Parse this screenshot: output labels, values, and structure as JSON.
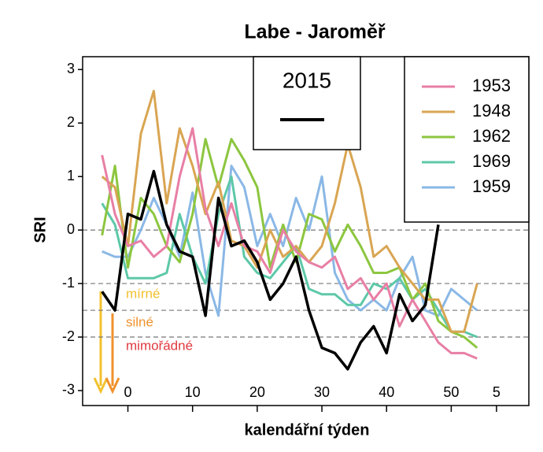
{
  "chart_data": {
    "type": "line",
    "title": "Labe - Jaroměř",
    "y_label": "SRI",
    "x_label": "kalendářní týden",
    "x": [
      -4,
      -2,
      0,
      2,
      4,
      6,
      8,
      10,
      12,
      14,
      16,
      18,
      20,
      22,
      24,
      26,
      28,
      30,
      32,
      34,
      36,
      38,
      40,
      42,
      44,
      46,
      48,
      50,
      52,
      54
    ],
    "series": [
      {
        "name": "2015",
        "color": "#000000",
        "values": [
          -1.15,
          -1.5,
          0.3,
          0.2,
          1.1,
          0.1,
          -0.4,
          -0.5,
          -1.6,
          0.6,
          -0.3,
          -0.2,
          -0.6,
          -1.3,
          -1.0,
          -0.5,
          -1.5,
          -2.2,
          -2.3,
          -2.6,
          -2.1,
          -1.8,
          -2.3,
          -1.2,
          -1.7,
          -1.4,
          0.1,
          null,
          null,
          null
        ]
      },
      {
        "name": "1953",
        "color": "#e87fa5",
        "values": [
          1.4,
          0.3,
          -0.3,
          -0.2,
          -0.5,
          -0.3,
          1.0,
          1.9,
          0.4,
          -0.3,
          0.5,
          -0.3,
          -0.4,
          -0.8,
          0,
          -0.4,
          -0.6,
          -0.7,
          -0.5,
          -1.1,
          -0.9,
          -1.3,
          -1.0,
          -1.8,
          -1.3,
          -1.7,
          -2.1,
          -2.3,
          -2.3,
          -2.4
        ]
      },
      {
        "name": "1948",
        "color": "#d9a552",
        "values": [
          1.0,
          0.8,
          -0.3,
          1.8,
          2.6,
          0.5,
          1.9,
          1.2,
          0.3,
          0.9,
          -0.2,
          -0.3,
          -0.7,
          0.0,
          -0.5,
          -0.3,
          -0.6,
          -0.3,
          0.5,
          1.6,
          0.8,
          -0.5,
          -0.3,
          -0.7,
          -1.0,
          -1.3,
          -1.3,
          -1.9,
          -1.9,
          -1.0
        ]
      },
      {
        "name": "1962",
        "color": "#8cc63f",
        "values": [
          -0.1,
          1.2,
          -0.7,
          0.6,
          0.3,
          -0.3,
          -0.6,
          0.3,
          1.7,
          0.8,
          1.7,
          1.3,
          0.8,
          -0.7,
          0.1,
          -0.6,
          0.3,
          0.2,
          -0.4,
          0.1,
          -0.3,
          -0.8,
          -0.8,
          -0.7,
          -1.3,
          -1.0,
          -1.7,
          -1.9,
          -2.0,
          -2.2
        ]
      },
      {
        "name": "1969",
        "color": "#5dc8a8",
        "values": [
          0.5,
          0.1,
          -0.9,
          -0.9,
          -0.9,
          -0.8,
          0.3,
          -0.5,
          -1.0,
          0.3,
          1.0,
          -0.5,
          -0.8,
          -0.9,
          -0.6,
          -0.3,
          -1.1,
          -1.2,
          -1.2,
          -1.4,
          -1.4,
          -1.0,
          -1.1,
          -0.9,
          -1.3,
          -1.1,
          -1.5,
          -1.9,
          -1.9,
          -2.0
        ]
      },
      {
        "name": "1959",
        "color": "#8ab8e6",
        "values": [
          -0.4,
          -0.5,
          -0.5,
          0.0,
          0.6,
          0.1,
          -0.5,
          0.7,
          -0.8,
          -1.6,
          1.2,
          0.8,
          -0.3,
          0.3,
          -0.3,
          0.6,
          0.0,
          1.0,
          -0.8,
          -1.3,
          -1.5,
          -1.3,
          -1.5,
          -0.9,
          -0.5,
          -1.5,
          -1.6,
          -1.1,
          -1.3,
          -1.5
        ]
      }
    ],
    "xlim": [
      -7,
      62
    ],
    "xticks": [
      0,
      10,
      20,
      30,
      40,
      50,
      {
        "value": 57,
        "label": "5"
      }
    ],
    "ylim": [
      -3.28,
      3.24
    ],
    "yticks": [
      -3,
      -2,
      -1,
      0,
      1,
      2,
      3
    ],
    "reference_lines": [
      0,
      -1,
      -1.5,
      -2
    ],
    "annotations": [
      {
        "text": "mírné",
        "color": "#f2c12e"
      },
      {
        "text": "silné",
        "color": "#f0922b"
      },
      {
        "text": "mimořádné",
        "color": "#e0393e"
      }
    ]
  }
}
